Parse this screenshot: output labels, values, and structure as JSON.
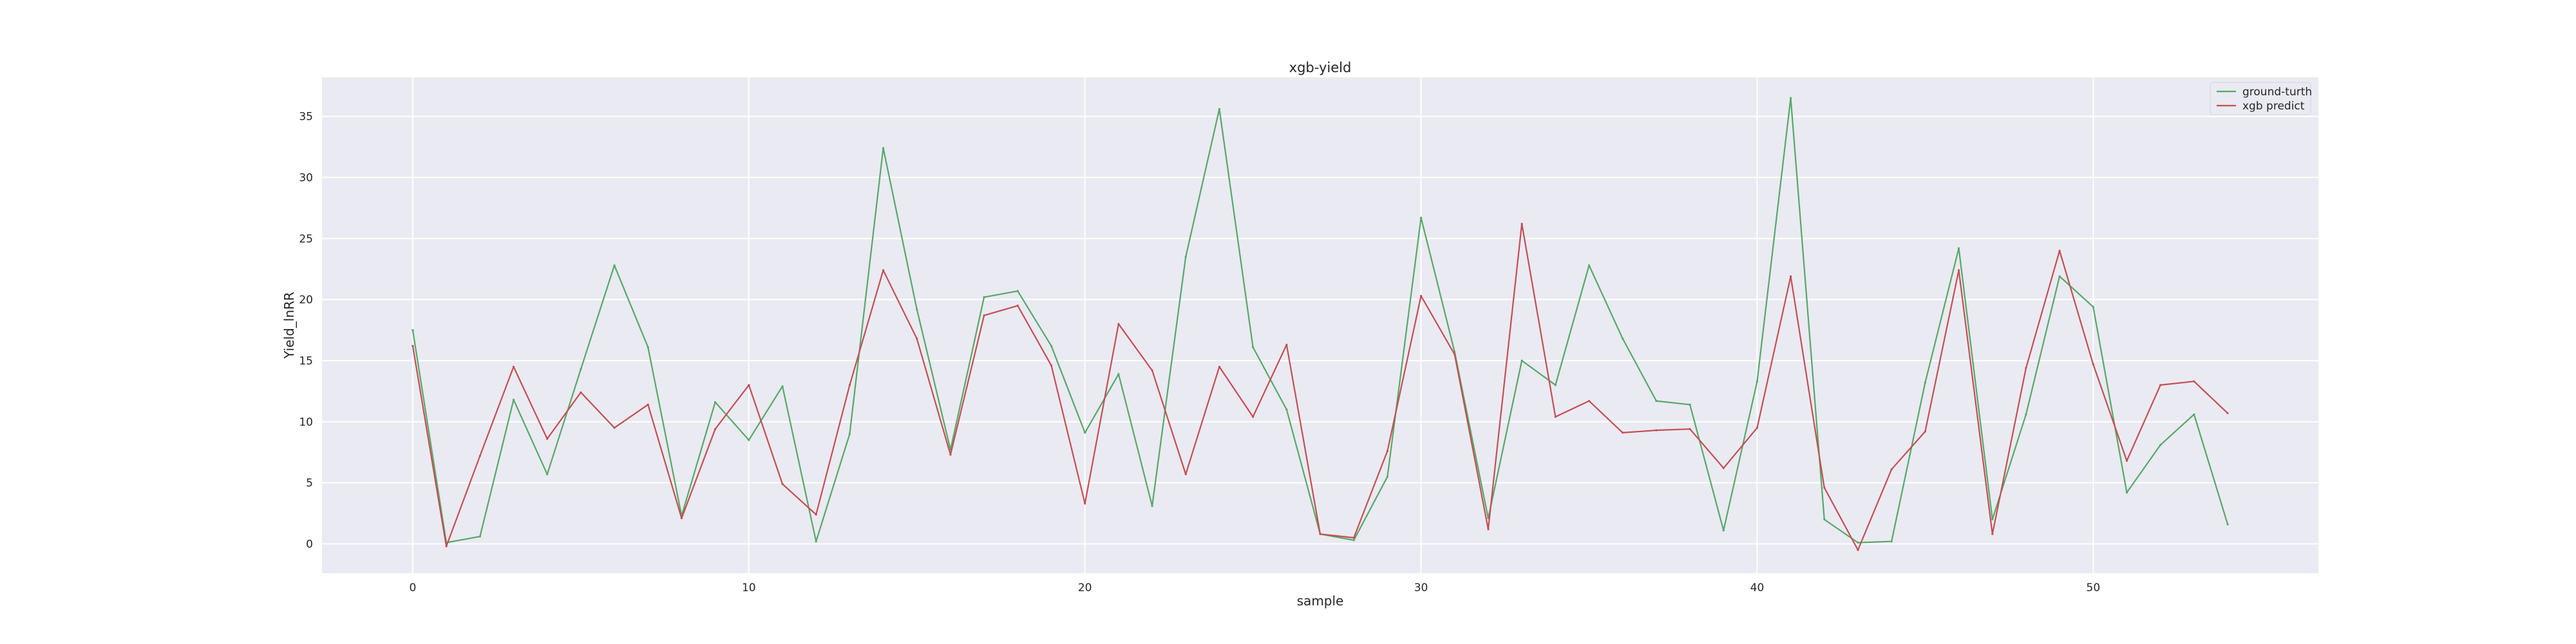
{
  "chart_data": {
    "type": "line",
    "title": "xgb-yield",
    "xlabel": "sample",
    "ylabel": "Yield_lnRR",
    "xlim": [
      -2.7,
      56.7
    ],
    "ylim": [
      -2.4,
      38.2
    ],
    "xticks": [
      0,
      10,
      20,
      30,
      40,
      50
    ],
    "yticks": [
      0,
      5,
      10,
      15,
      20,
      25,
      30,
      35
    ],
    "grid": true,
    "legend": "top-right",
    "x": [
      0,
      1,
      2,
      3,
      4,
      5,
      6,
      7,
      8,
      9,
      10,
      11,
      12,
      13,
      14,
      15,
      16,
      17,
      18,
      19,
      20,
      21,
      22,
      23,
      24,
      25,
      26,
      27,
      28,
      29,
      30,
      31,
      32,
      33,
      34,
      35,
      36,
      37,
      38,
      39,
      40,
      41,
      42,
      43,
      44,
      45,
      46,
      47,
      48,
      49,
      50,
      51,
      52,
      53,
      54
    ],
    "series": [
      {
        "name": "ground-turth",
        "color": "#55a868",
        "values": [
          17.5,
          0.1,
          0.6,
          11.8,
          5.7,
          14.3,
          22.8,
          16.1,
          2.3,
          11.6,
          8.5,
          12.9,
          0.2,
          9.0,
          32.4,
          19.2,
          7.7,
          20.2,
          20.7,
          16.2,
          9.1,
          13.9,
          3.1,
          23.5,
          35.6,
          16.1,
          11.0,
          0.8,
          0.3,
          5.5,
          26.7,
          15.7,
          2.1,
          15.0,
          13.0,
          22.8,
          16.8,
          11.7,
          11.4,
          1.1,
          13.3,
          36.5,
          2.0,
          0.1,
          0.2,
          13.2,
          24.2,
          2.0,
          10.6,
          21.9,
          19.4,
          4.2,
          8.1,
          10.6,
          1.6
        ]
      },
      {
        "name": "xgb predict",
        "color": "#c44e52",
        "values": [
          16.2,
          -0.2,
          7.2,
          14.5,
          8.6,
          12.4,
          9.5,
          11.4,
          2.1,
          9.4,
          13.0,
          4.9,
          2.4,
          13.0,
          22.4,
          16.8,
          7.3,
          18.7,
          19.5,
          14.6,
          3.3,
          18.0,
          14.2,
          5.7,
          14.5,
          10.4,
          16.3,
          0.8,
          0.5,
          7.6,
          20.3,
          15.5,
          1.2,
          26.2,
          10.4,
          11.7,
          9.1,
          9.3,
          9.4,
          6.2,
          9.5,
          21.9,
          4.6,
          -0.5,
          6.1,
          9.2,
          22.4,
          0.8,
          14.4,
          24.0,
          14.7,
          6.8,
          13.0,
          13.3,
          10.7
        ]
      }
    ]
  }
}
